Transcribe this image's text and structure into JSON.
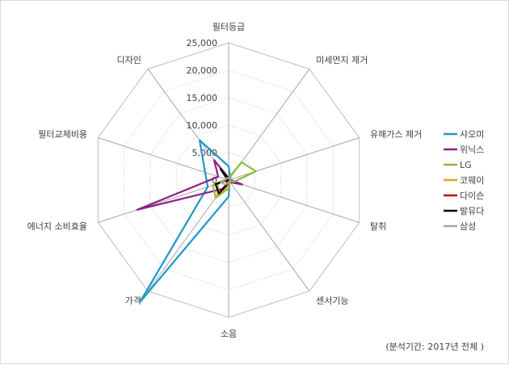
{
  "chart_data": {
    "type": "radar",
    "axes": [
      "필터등급",
      "미세먼지 제거",
      "유해가스 제거",
      "탈취",
      "센서기능",
      "소음",
      "가격",
      "에너지 소비효율",
      "필터교체비용",
      "디자인"
    ],
    "ticks": [
      "0",
      "5,000",
      "10,000",
      "15,000",
      "20,000",
      "25,000"
    ],
    "rmax": 25000,
    "grid": true,
    "legend": "right",
    "series": [
      {
        "name": "샤오미",
        "color": "#1f97c7",
        "values": [
          2500,
          500,
          300,
          300,
          300,
          3000,
          27500,
          4000,
          4500,
          9000
        ]
      },
      {
        "name": "위닉스",
        "color": "#8e1f8e",
        "values": [
          400,
          300,
          200,
          2600,
          500,
          500,
          2000,
          17500,
          2000,
          4500
        ]
      },
      {
        "name": "LG",
        "color": "#8bbd3c",
        "values": [
          400,
          4000,
          5200,
          1000,
          300,
          1500,
          4000,
          3000,
          500,
          400
        ]
      },
      {
        "name": "코웨이",
        "color": "#e8a317",
        "values": [
          300,
          300,
          300,
          300,
          300,
          1000,
          3500,
          2000,
          300,
          300
        ]
      },
      {
        "name": "다이슨",
        "color": "#c00000",
        "values": [
          300,
          200,
          200,
          200,
          200,
          300,
          500,
          500,
          200,
          2500
        ]
      },
      {
        "name": "발뮤다",
        "color": "#000000",
        "values": [
          200,
          200,
          200,
          200,
          200,
          500,
          3000,
          2500,
          200,
          2500
        ]
      },
      {
        "name": "삼성",
        "color": "#a6a6a6",
        "values": [
          300,
          300,
          300,
          300,
          300,
          500,
          1000,
          1500,
          500,
          500
        ]
      }
    ]
  },
  "footnote": "(분석기간: 2017년 전체 )"
}
